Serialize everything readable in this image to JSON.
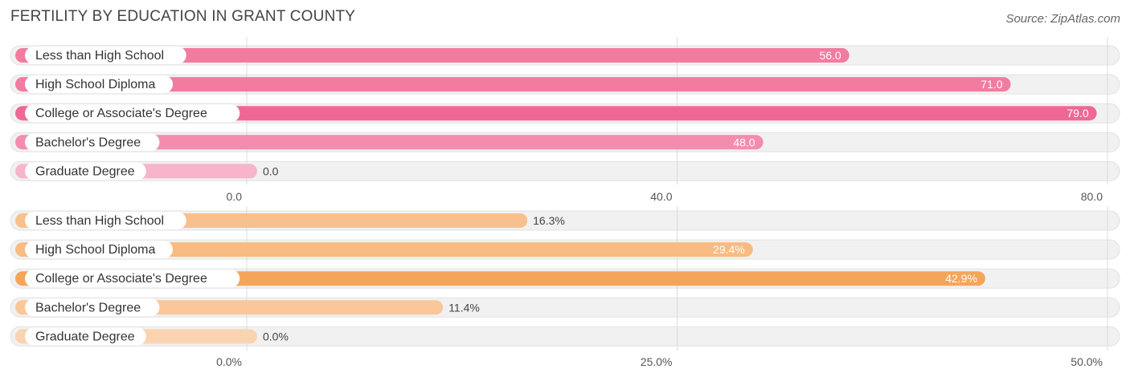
{
  "title": "FERTILITY BY EDUCATION IN GRANT COUNTY",
  "source": "Source: ZipAtlas.com",
  "chart_data": [
    {
      "type": "bar",
      "orientation": "horizontal",
      "categories": [
        "Less than High School",
        "High School Diploma",
        "College or Associate's Degree",
        "Bachelor's Degree",
        "Graduate Degree"
      ],
      "values": [
        56.0,
        71.0,
        79.0,
        48.0,
        0.0
      ],
      "value_labels": [
        "56.0",
        "71.0",
        "79.0",
        "48.0",
        "0.0"
      ],
      "xlim": [
        0,
        80
      ],
      "ticks": [
        0,
        40,
        80
      ],
      "tick_labels": [
        "0.0",
        "40.0",
        "80.0"
      ],
      "colors": [
        "#f27ba0",
        "#f27ba0",
        "#ef6894",
        "#f48cae",
        "#f7b4ca"
      ]
    },
    {
      "type": "bar",
      "orientation": "horizontal",
      "categories": [
        "Less than High School",
        "High School Diploma",
        "College or Associate's Degree",
        "Bachelor's Degree",
        "Graduate Degree"
      ],
      "values": [
        16.3,
        29.4,
        42.9,
        11.4,
        0.0
      ],
      "value_labels": [
        "16.3%",
        "29.4%",
        "42.9%",
        "11.4%",
        "0.0%"
      ],
      "xlim": [
        0,
        50
      ],
      "ticks": [
        0,
        25,
        50
      ],
      "tick_labels": [
        "0.0%",
        "25.0%",
        "50.0%"
      ],
      "colors": [
        "#f8c08c",
        "#f8bb82",
        "#f5a55a",
        "#f9c79a",
        "#fad3b0"
      ]
    }
  ]
}
